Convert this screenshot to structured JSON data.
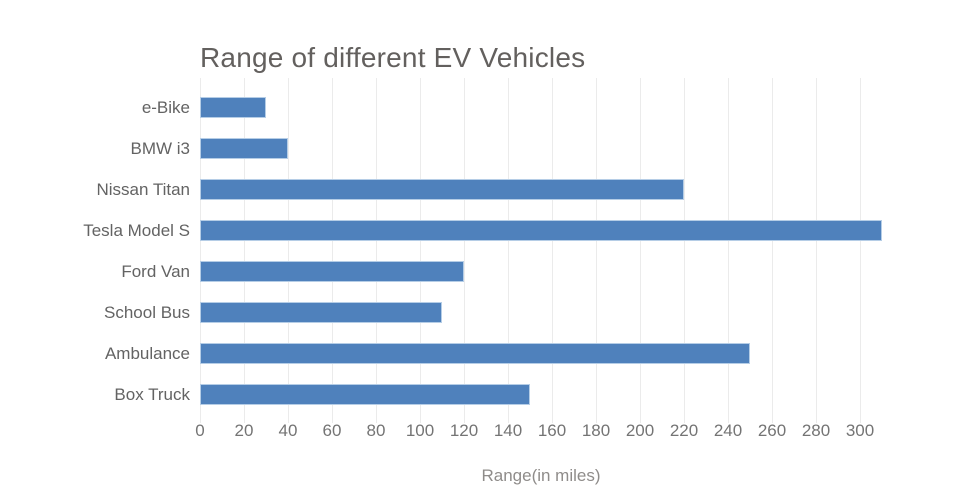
{
  "title": "Range of different EV Vehicles",
  "chart_data": {
    "type": "bar",
    "orientation": "horizontal",
    "title": "Range of different EV Vehicles",
    "xlabel": "Range(in miles)",
    "ylabel": "",
    "categories": [
      "e-Bike",
      "BMW i3",
      "Nissan Titan",
      "Tesla Model S",
      "Ford Van",
      "School Bus",
      "Ambulance",
      "Box Truck"
    ],
    "values": [
      30,
      40,
      220,
      310,
      120,
      110,
      250,
      150
    ],
    "xlim": [
      0,
      310
    ],
    "tick_interval": 20,
    "tick_labels": [
      "0",
      "20",
      "40",
      "60",
      "80",
      "100",
      "120",
      "140",
      "160",
      "180",
      "200",
      "220",
      "240",
      "260",
      "280",
      "300"
    ],
    "grid": true,
    "legend": "none",
    "colors": {
      "bar_fill": "#4f81bc",
      "bar_border": "#b5cde6",
      "gridline": "#ebebeb",
      "title_text": "#63605e",
      "category_label_text": "#636363",
      "tick_label_text": "#747474",
      "axis_title_text": "#8f8c8a",
      "background": "#ffffff"
    }
  }
}
